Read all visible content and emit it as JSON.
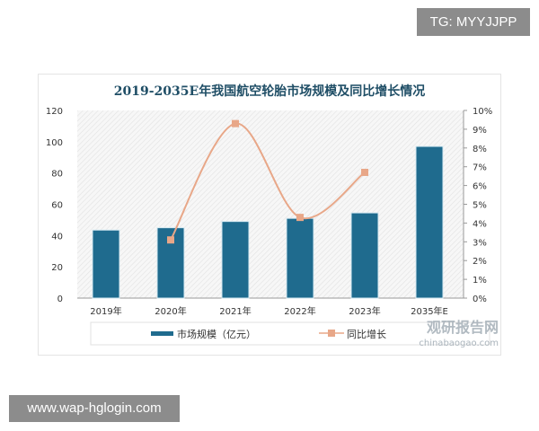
{
  "overlay": {
    "tg_label": "TG: MYYJJPP",
    "url_label": "www.wap-hglogin.com"
  },
  "watermark": {
    "cn": "观研报告网",
    "en": "chinabaogao.com"
  },
  "chart_data": {
    "type": "bar+line",
    "title": "2019-2035E年我国航空轮胎市场规模及同比增长情况",
    "categories": [
      "2019年",
      "2020年",
      "2021年",
      "2022年",
      "2023年",
      "2035年E"
    ],
    "series": [
      {
        "name": "市场规模（亿元）",
        "type": "bar",
        "axis": "left",
        "color": "#1f6b8e",
        "values": [
          43.5,
          45,
          49,
          51,
          54.5,
          97
        ]
      },
      {
        "name": "同比增长",
        "type": "line",
        "axis": "right",
        "color": "#e8a788",
        "values": [
          null,
          3.1,
          9.3,
          4.3,
          6.7,
          null
        ]
      }
    ],
    "y_left": {
      "ylim": [
        0,
        120
      ],
      "ticks": [
        "0",
        "20",
        "40",
        "60",
        "80",
        "100",
        "120"
      ]
    },
    "y_right": {
      "ylim": [
        0,
        10
      ],
      "ticks": [
        "0%",
        "1%",
        "2%",
        "3%",
        "4%",
        "5%",
        "6%",
        "7%",
        "8%",
        "9%",
        "10%"
      ]
    },
    "legend": "bottom",
    "grid": false
  }
}
